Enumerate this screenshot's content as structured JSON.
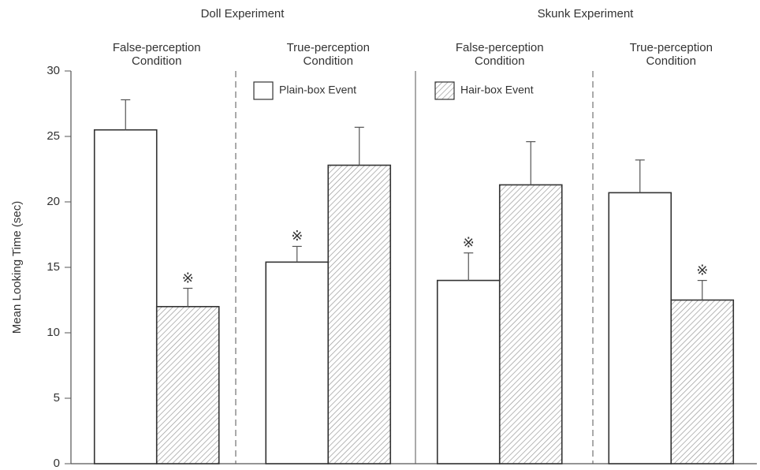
{
  "chart_data": {
    "type": "bar",
    "groups": [
      "Doll Experiment",
      "Skunk Experiment"
    ],
    "categories": [
      "False-perception Condition",
      "True-perception Condition",
      "False-perception Condition",
      "True-perception Condition"
    ],
    "y_label": "Mean Looking Time (sec)",
    "ylim": [
      0,
      30
    ],
    "yticks": [
      0,
      5,
      10,
      15,
      20,
      25,
      30
    ],
    "series": [
      {
        "name": "Plain-box Event",
        "color": "#ffffff",
        "pattern": "none",
        "values": [
          25.5,
          15.4,
          14.0,
          20.7
        ],
        "errors": [
          2.3,
          1.2,
          2.1,
          2.5
        ],
        "annotations": [
          null,
          "※",
          "※",
          null
        ]
      },
      {
        "name": "Hair-box Event",
        "color": "#999999",
        "pattern": "hatch",
        "values": [
          12.0,
          22.8,
          21.3,
          12.5
        ],
        "errors": [
          1.4,
          2.9,
          3.3,
          1.5
        ],
        "annotations": [
          "※",
          null,
          null,
          "※"
        ]
      }
    ]
  }
}
